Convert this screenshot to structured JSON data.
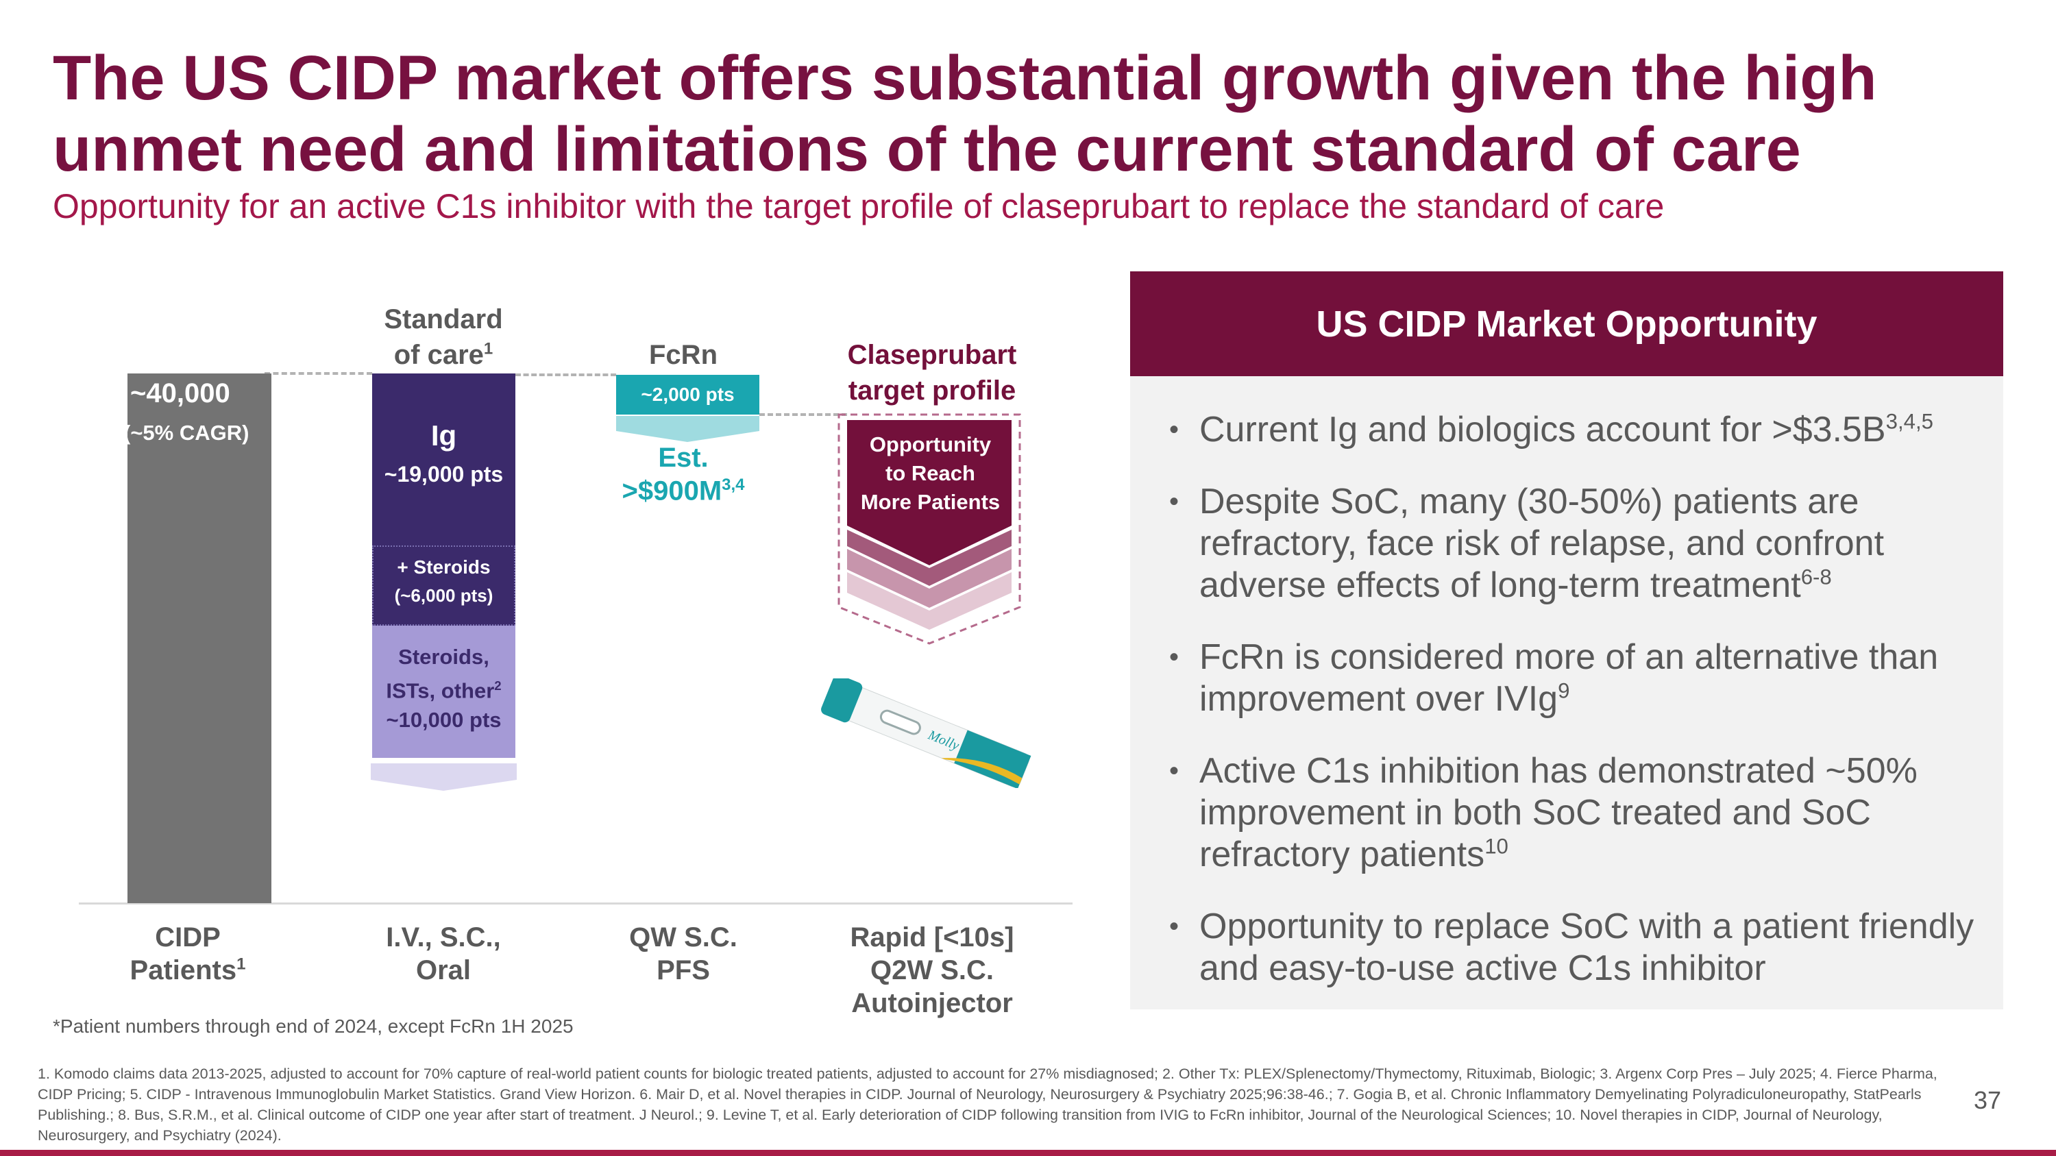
{
  "title": "The US CIDP market offers substantial growth given the high unmet need and limitations of the current standard of care",
  "subtitle": "Opportunity for an active C1s inhibitor with the target profile of claseprubart to replace the standard of care",
  "diagram": {
    "columns": [
      {
        "header": "",
        "bar_value": "~40,000",
        "bar_sub": "(~5% CAGR)",
        "category": "CIDP",
        "category2": "Patients",
        "category_sup": "1"
      },
      {
        "header": "Standard",
        "header2": "of care",
        "header_sup": "1",
        "segments": [
          {
            "label": "Ig",
            "value": "~19,000 pts",
            "color": "#3b2a6b"
          },
          {
            "label": "+ Steroids",
            "value": "(~6,000 pts)",
            "color": "#3b2a6b"
          },
          {
            "label": "Steroids,",
            "label2": "ISTs, other",
            "label_sup": "2",
            "value": "~10,000 pts",
            "color": "#a59ad6"
          }
        ],
        "category": "I.V., S.C.,",
        "category2": "Oral"
      },
      {
        "header": "FcRn",
        "box_value": "~2,000 pts",
        "est": "Est.",
        "est_value": ">$900M",
        "est_sup": "3,4",
        "category": "QW S.C.",
        "category2": "PFS",
        "color": "#1aa6b0"
      },
      {
        "header": "Claseprubart",
        "header2": "target profile",
        "box_line1": "Opportunity",
        "box_line2": "to Reach",
        "box_line3": "More Patients",
        "category": "Rapid [<10s]",
        "category2": "Q2W S.C.",
        "category3": "Autoinjector",
        "device_brand": "Molly",
        "color": "#73103b"
      }
    ],
    "footnote": "*Patient numbers through end of 2024, except FcRn 1H 2025"
  },
  "panel": {
    "title": "US CIDP Market Opportunity",
    "bullets": [
      {
        "text": "Current Ig and biologics account for >$3.5B",
        "sup": "3,4,5"
      },
      {
        "text": "Despite SoC, many (30-50%) patients are refractory, face risk of relapse, and confront adverse effects of long-term treatment",
        "sup": "6-8"
      },
      {
        "text": "FcRn is considered more of an alternative than improvement over IVIg",
        "sup": "9"
      },
      {
        "text": "Active C1s inhibition has demonstrated ~50% improvement in both SoC treated and SoC refractory patients",
        "sup": "10"
      },
      {
        "text": "Opportunity to replace SoC with a patient friendly and easy-to-use active C1s inhibitor",
        "sup": ""
      }
    ]
  },
  "references": "1. Komodo claims data 2013-2025, adjusted to account for 70% capture of real-world patient counts for biologic treated patients, adjusted to account for 27% misdiagnosed; 2. Other Tx: PLEX/Splenectomy/Thymectomy, Rituximab, Biologic; 3. Argenx Corp Pres – July 2025; 4. Fierce Pharma, CIDP Pricing; 5. CIDP - Intravenous Immunoglobulin Market Statistics. Grand View Horizon. 6. Mair D, et al. Novel therapies in CIDP. Journal of Neurology, Neurosurgery & Psychiatry 2025;96:38-46.; 7. Gogia B, et al. Chronic Inflammatory Demyelinating Polyradiculoneuropathy, StatPearls Publishing.; 8. Bus, S.R.M., et al. Clinical outcome of CIDP one year after start of treatment. J Neurol.; 9. Levine T, et al. Early deterioration of CIDP following transition from IVIG to FcRn inhibitor, Journal of the Neurological Sciences; 10. Novel therapies in CIDP, Journal of Neurology, Neurosurgery, and Psychiatry (2024).",
  "page_number": "37"
}
